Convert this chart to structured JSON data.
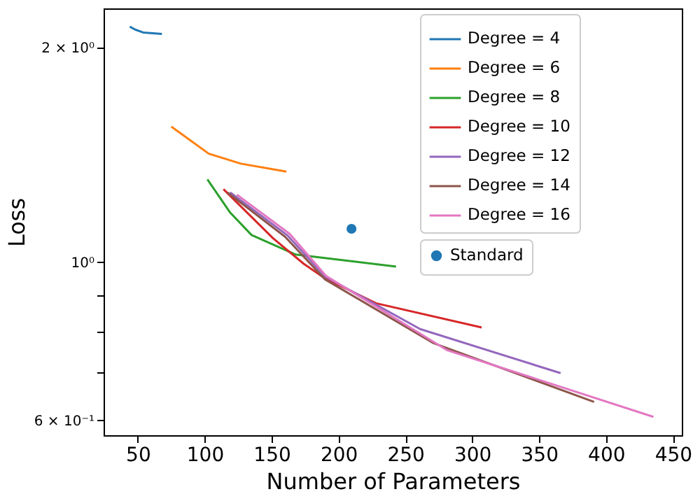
{
  "chart_data": {
    "type": "line",
    "xlabel": "Number of Parameters",
    "ylabel": "Loss",
    "log": "y",
    "grid": false,
    "legend": "top right",
    "xlim": [
      24.4,
      456.6
    ],
    "xticks": [
      50,
      100,
      150,
      200,
      250,
      300,
      350,
      400,
      450
    ],
    "ylim": [
      0.572,
      2.27
    ],
    "yticks": [
      {
        "value": 0.6,
        "label": "6 × 10⁻¹"
      },
      {
        "value": 0.7,
        "label": null
      },
      {
        "value": 0.8,
        "label": null
      },
      {
        "value": 0.9,
        "label": null
      },
      {
        "value": 1,
        "label": "10⁰"
      },
      {
        "value": 2,
        "label": "2 × 10⁰"
      }
    ],
    "series": [
      {
        "name": "Degree = 4",
        "color": "#1f77b4",
        "x": [
          44,
          48,
          54,
          68
        ],
        "values": [
          2.14,
          2.12,
          2.1,
          2.09
        ]
      },
      {
        "name": "Degree = 6",
        "color": "#ff7f0e",
        "x": [
          75,
          103,
          127,
          161
        ],
        "values": [
          1.55,
          1.42,
          1.375,
          1.34
        ]
      },
      {
        "name": "Degree = 8",
        "color": "#2ca02c",
        "x": [
          102,
          119,
          135,
          168,
          243
        ],
        "values": [
          1.307,
          1.174,
          1.092,
          1.025,
          0.986
        ]
      },
      {
        "name": "Degree = 10",
        "color": "#d62728",
        "x": [
          114,
          151,
          174,
          190,
          228,
          307
        ],
        "values": [
          1.266,
          1.081,
          0.995,
          0.949,
          0.876,
          0.81
        ]
      },
      {
        "name": "Degree = 12",
        "color": "#9467bd",
        "x": [
          119,
          162,
          190,
          261,
          366
        ],
        "values": [
          1.253,
          1.09,
          0.955,
          0.806,
          0.699
        ]
      },
      {
        "name": "Degree = 14",
        "color": "#8c564b",
        "x": [
          117,
          160,
          190,
          271,
          391
        ],
        "values": [
          1.253,
          1.086,
          0.946,
          0.77,
          0.637
        ]
      },
      {
        "name": "Degree = 16",
        "color": "#e377c2",
        "x": [
          124,
          163.5,
          190.6,
          281,
          435.4
        ],
        "values": [
          1.244,
          1.096,
          0.957,
          0.753,
          0.607
        ]
      },
      {
        "name": "Standard",
        "type": "scatter",
        "marker": "circle",
        "color": "#1f77b4",
        "x": [
          209.7
        ],
        "values": [
          1.114
        ]
      }
    ]
  }
}
